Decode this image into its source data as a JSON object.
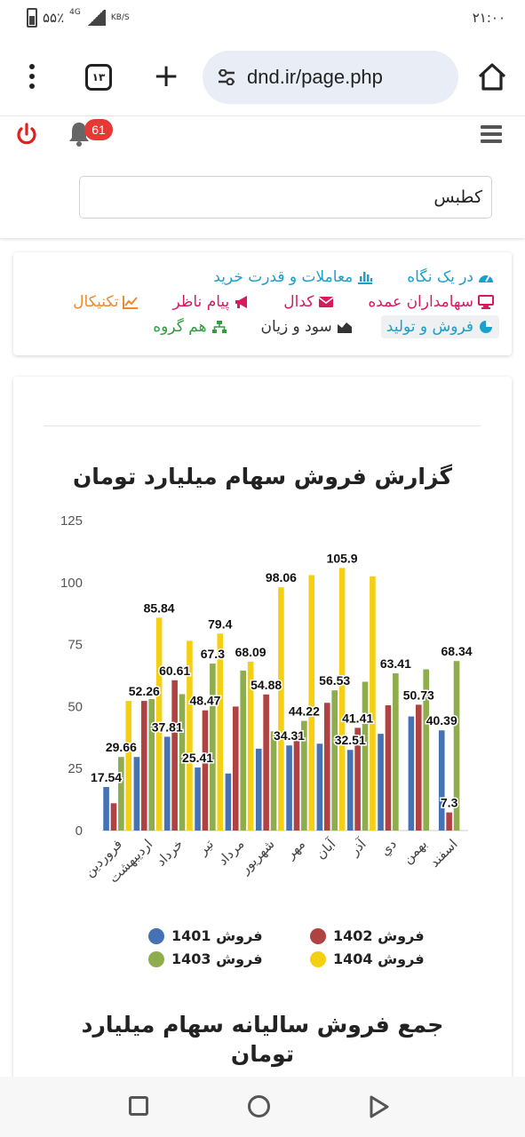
{
  "status_bar": {
    "time": "۲۱:۰۰",
    "battery": "۵۵٪",
    "network": "4G",
    "speed_unit": "KB/S"
  },
  "browser": {
    "url": "dnd.ir/page.php",
    "tab_count": "۱۳"
  },
  "topbar": {
    "notifications": "61",
    "search_value": "کطبس"
  },
  "menu": {
    "row1": [
      {
        "label": "در یک نگاه",
        "icon": "tachometer-icon",
        "color": "#1aa0cc"
      },
      {
        "label": "معاملات و قدرت خرید",
        "icon": "bar-chart-icon",
        "color": "#1aa0cc"
      }
    ],
    "row2": [
      {
        "label": "سهامداران عمده",
        "icon": "desktop-icon",
        "color": "#d81b60"
      },
      {
        "label": "کدال",
        "icon": "envelope-icon",
        "color": "#d81b60"
      },
      {
        "label": "پیام ناظر",
        "icon": "bullhorn-icon",
        "color": "#d81b60"
      },
      {
        "label": "تکنیکال",
        "icon": "line-chart-icon",
        "color": "#f0892e"
      }
    ],
    "row3": [
      {
        "label": "فروش و تولید",
        "icon": "pie-chart-icon",
        "color": "#1aa0cc",
        "active": true
      },
      {
        "label": "سود و زیان",
        "icon": "area-chart-icon",
        "color": "#333333"
      },
      {
        "label": "هم گروه",
        "icon": "sitemap-icon",
        "color": "#2e9e3f"
      }
    ]
  },
  "chart_title": "گزارش فروش سهام میلیارد تومان",
  "chart_data": {
    "type": "bar",
    "categories": [
      "فروردین",
      "اردیبهشت",
      "خرداد",
      "تیر",
      "مرداد",
      "شهریور",
      "مهر",
      "آبان",
      "آذر",
      "دي",
      "بهمن",
      "اسفند"
    ],
    "ylim": [
      0,
      125
    ],
    "yticks": [
      0,
      25,
      50,
      75,
      100,
      125
    ],
    "grid": false,
    "legend_position": "bottom",
    "series": [
      {
        "name": "فروش 1401",
        "color": "#4472b4",
        "values": [
          17.54,
          29.66,
          37.81,
          25.41,
          23,
          33,
          34.31,
          35,
          32.51,
          39,
          46,
          40.39
        ]
      },
      {
        "name": "فروش 1402",
        "color": "#b14242",
        "values": [
          11,
          52.26,
          60.61,
          48.47,
          50,
          54.88,
          39,
          51.5,
          41.41,
          50.5,
          50.73,
          7.3
        ]
      },
      {
        "name": "فروش 1403",
        "color": "#8ead4c",
        "values": [
          29.66,
          53,
          55,
          67.3,
          64.5,
          40,
          44.22,
          56.53,
          60,
          63.41,
          65,
          68.34
        ]
      },
      {
        "name": "فروش 1404",
        "color": "#f5cf12",
        "values": [
          52.26,
          85.84,
          76.5,
          79.4,
          68.09,
          98.06,
          103,
          105.9,
          102.5,
          null,
          null,
          null
        ]
      }
    ],
    "data_labels": [
      {
        "value": "17.54",
        "series": 0,
        "category": 0
      },
      {
        "value": "29.66",
        "series": 2,
        "category": 0
      },
      {
        "value": "52.26",
        "series": 1,
        "category": 1
      },
      {
        "value": "37.81",
        "series": 0,
        "category": 2
      },
      {
        "value": "85.84",
        "series": 3,
        "category": 1
      },
      {
        "value": "60.61",
        "series": 1,
        "category": 2
      },
      {
        "value": "25.41",
        "series": 0,
        "category": 3
      },
      {
        "value": "48.47",
        "series": 1,
        "category": 3
      },
      {
        "value": "67.3",
        "series": 2,
        "category": 3
      },
      {
        "value": "79.4",
        "series": 3,
        "category": 3
      },
      {
        "value": "68.09",
        "series": 3,
        "category": 4
      },
      {
        "value": "54.88",
        "series": 1,
        "category": 5
      },
      {
        "value": "98.06",
        "series": 3,
        "category": 5
      },
      {
        "value": "34.31",
        "series": 0,
        "category": 6
      },
      {
        "value": "44.22",
        "series": 2,
        "category": 6
      },
      {
        "value": "56.53",
        "series": 2,
        "category": 7
      },
      {
        "value": "105.9",
        "series": 3,
        "category": 7
      },
      {
        "value": "32.51",
        "series": 0,
        "category": 8
      },
      {
        "value": "41.41",
        "series": 1,
        "category": 8
      },
      {
        "value": "63.41",
        "series": 2,
        "category": 9
      },
      {
        "value": "50.73",
        "series": 1,
        "category": 10
      },
      {
        "value": "40.39",
        "series": 0,
        "category": 11
      },
      {
        "value": "7.3",
        "series": 1,
        "category": 11
      },
      {
        "value": "68.34",
        "series": 2,
        "category": 11
      }
    ]
  },
  "legend": [
    {
      "label": "فروش 1401",
      "color": "#4472b4"
    },
    {
      "label": "فروش 1402",
      "color": "#b14242"
    },
    {
      "label": "فروش 1403",
      "color": "#8ead4c"
    },
    {
      "label": "فروش 1404",
      "color": "#f5cf12"
    }
  ],
  "second_title": "جمع فروش سالیانه سهام میلیارد تومان"
}
